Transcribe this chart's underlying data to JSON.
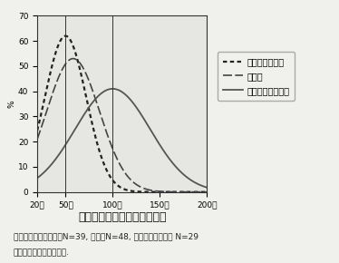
{
  "title": "図３　リンドウの適当な価格",
  "caption_line1": "注）盛岡市・北上市　N=39, 青森市N=48, フラワースクール N=29",
  "caption_line2": "　　グラフは平滑化した.",
  "xlabel_ticks": [
    "20円",
    "50円",
    "100円",
    "150円",
    "200円"
  ],
  "xlabel_vals": [
    20,
    50,
    100,
    150,
    200
  ],
  "ylabel": "%",
  "ylim": [
    0,
    70
  ],
  "xlim": [
    20,
    200
  ],
  "vlines": [
    50,
    100
  ],
  "series": [
    {
      "label": "盛岡市・北上市",
      "peak_x": 50,
      "peak_y": 62,
      "sigma": 22
    },
    {
      "label": "青森市",
      "peak_x": 58,
      "peak_y": 53,
      "sigma": 28
    },
    {
      "label": "フラワースクール",
      "peak_x": 100,
      "peak_y": 41,
      "sigma": 40
    }
  ],
  "background_color": "#f5f5f2",
  "plot_bg": "#e8e8e4",
  "line_color": "#333333",
  "fontsize_title": 9,
  "fontsize_caption": 6.5,
  "fontsize_axis": 6.5,
  "fontsize_legend": 7
}
